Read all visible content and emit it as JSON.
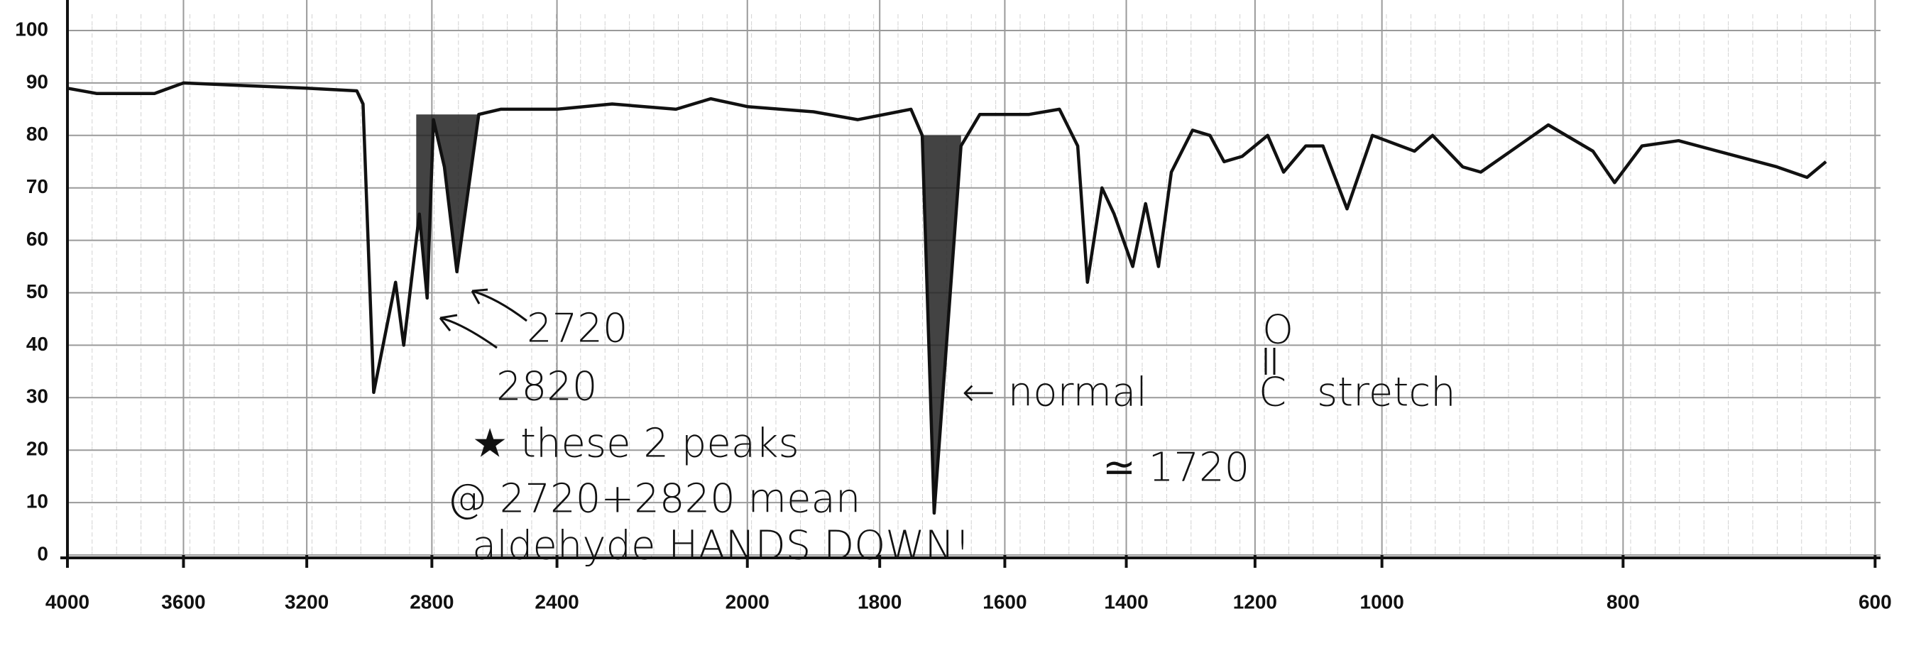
{
  "chart_data": {
    "type": "line",
    "x": [
      4000,
      3900,
      3700,
      3600,
      3400,
      3200,
      3040,
      3020,
      2986,
      2916,
      2890,
      2850,
      2840,
      2815,
      2795,
      2760,
      2720,
      2650,
      2580,
      2400,
      2284,
      2150,
      2077,
      2000,
      1900,
      1833,
      1750,
      1732,
      1713,
      1670,
      1640,
      1560,
      1510,
      1480,
      1464,
      1440,
      1420,
      1390,
      1370,
      1350,
      1330,
      1297,
      1270,
      1248,
      1220,
      1180,
      1155,
      1120,
      1093,
      1055,
      1015,
      973,
      958,
      933,
      918,
      862,
      825,
      807,
      785,
      756,
      678,
      654,
      639
    ],
    "series": [
      {
        "color": "#111111",
        "values": [
          89,
          88,
          88,
          90,
          89.5,
          89,
          88.5,
          86,
          31,
          52,
          40,
          60,
          65,
          49,
          83,
          74,
          54,
          84,
          85,
          85,
          86,
          85,
          87,
          85.5,
          84.5,
          83,
          85,
          80,
          8,
          78,
          84,
          84,
          85,
          78,
          52,
          70,
          65,
          55,
          67,
          55,
          73,
          81,
          80,
          75,
          76,
          80,
          73,
          78,
          78,
          66,
          80,
          77,
          80,
          74,
          73,
          82,
          77,
          71,
          78,
          79,
          74,
          72,
          75
        ]
      }
    ],
    "xlim": [
      4000,
      600
    ],
    "ylim": [
      0,
      100
    ],
    "xticks": [
      4000,
      3600,
      3200,
      2800,
      2400,
      2000,
      1800,
      1600,
      1400,
      1200,
      1000,
      800,
      600
    ],
    "yticks": [
      0,
      10,
      20,
      30,
      40,
      50,
      60,
      70,
      80,
      90,
      100
    ],
    "grid": true,
    "annotations": [
      "2720",
      "2820",
      "★ these 2 peaks",
      "@ 2720+2820 mean",
      "aldehyde  HANDS DOWN!",
      "← normal",
      "O",
      "C",
      "stretch",
      "≃ 1720"
    ]
  }
}
